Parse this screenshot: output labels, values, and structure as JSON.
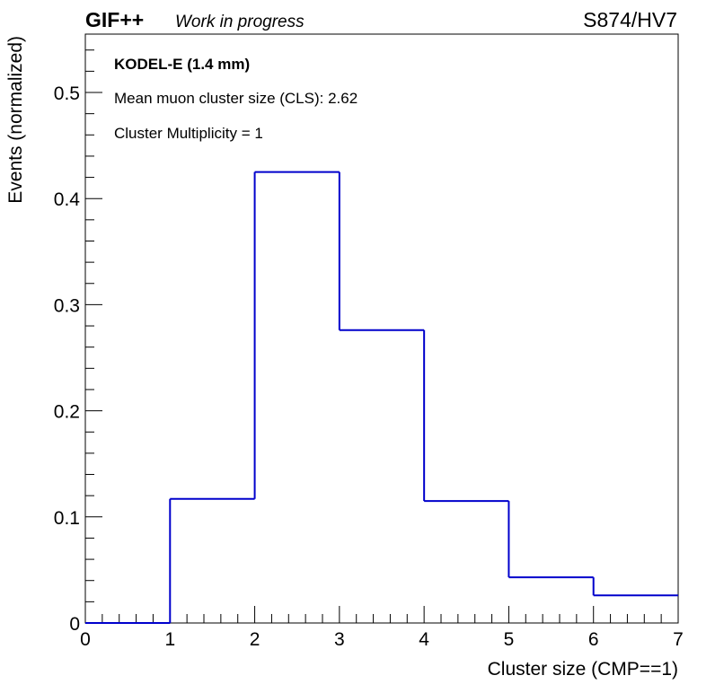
{
  "header": {
    "experiment": "GIF++",
    "status": "Work in progress",
    "run_label": "S874/HV7"
  },
  "annotations": {
    "chamber": "KODEL-E (1.4 mm)",
    "mean_cls": "Mean muon cluster size (CLS): 2.62",
    "multiplicity": "Cluster Multiplicity = 1"
  },
  "chart_data": {
    "type": "bar",
    "style": "step-histogram",
    "xlabel": "Cluster size (CMP==1)",
    "ylabel": "Events (normalized)",
    "xlim": [
      0,
      7
    ],
    "ylim": [
      0,
      0.555
    ],
    "x_ticks": [
      "0",
      "1",
      "2",
      "3",
      "4",
      "5",
      "6",
      "7"
    ],
    "y_ticks": [
      "0",
      "0.1",
      "0.2",
      "0.3",
      "0.4",
      "0.5"
    ],
    "bin_edges": [
      0,
      1,
      2,
      3,
      4,
      5,
      6,
      7
    ],
    "values": [
      0.0,
      0.117,
      0.425,
      0.276,
      0.115,
      0.043,
      0.026
    ],
    "line_color": "#0000cc",
    "grid": false
  }
}
